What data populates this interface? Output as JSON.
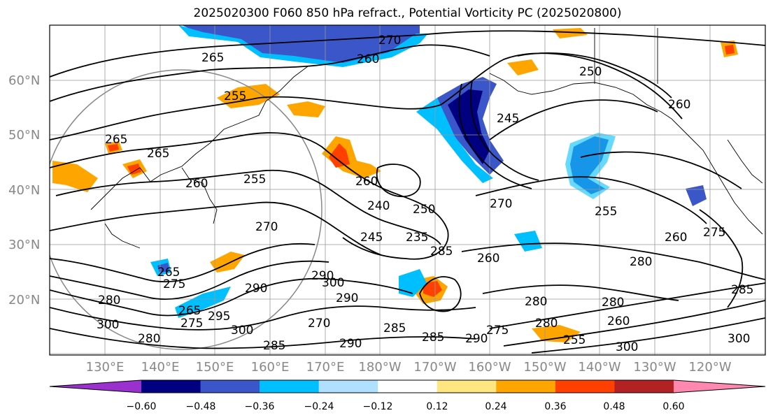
{
  "title": "2025020300 F060 850 hPa refract., Potential Vorticity PC (2025020800)",
  "latitude_labels": [
    "60°N",
    "50°N",
    "40°N",
    "30°N",
    "20°N"
  ],
  "longitude_labels": [
    "130°E",
    "140°E",
    "150°E",
    "160°E",
    "170°E",
    "180°W",
    "170°W",
    "160°W",
    "150°W",
    "140°W",
    "130°W",
    "120°W"
  ],
  "colorbar": {
    "colors": [
      "#9a31cf",
      "#000080",
      "#3a56c8",
      "#00bfff",
      "#b0e0ff",
      "#ffffff",
      "#ffe680",
      "#ffa500",
      "#ff4000",
      "#b22222",
      "#ff88b0"
    ],
    "tick_labels": [
      "−0.60",
      "−0.48",
      "−0.36",
      "−0.24",
      "−0.12",
      "0.12",
      "0.24",
      "0.36",
      "0.48",
      "0.60"
    ]
  },
  "contour_labels": [
    "265",
    "270",
    "260",
    "255",
    "250",
    "245",
    "265",
    "260",
    "255",
    "270",
    "260",
    "240",
    "250",
    "235",
    "245",
    "285",
    "270",
    "260",
    "280",
    "280",
    "280",
    "260",
    "290",
    "300",
    "285",
    "285",
    "290",
    "300",
    "295",
    "290",
    "265",
    "275",
    "280",
    "265",
    "275",
    "280",
    "300",
    "285",
    "280",
    "290",
    "270",
    "255",
    "260",
    "275",
    "290",
    "275",
    "285",
    "260",
    "265",
    "300",
    "300",
    "255"
  ]
}
